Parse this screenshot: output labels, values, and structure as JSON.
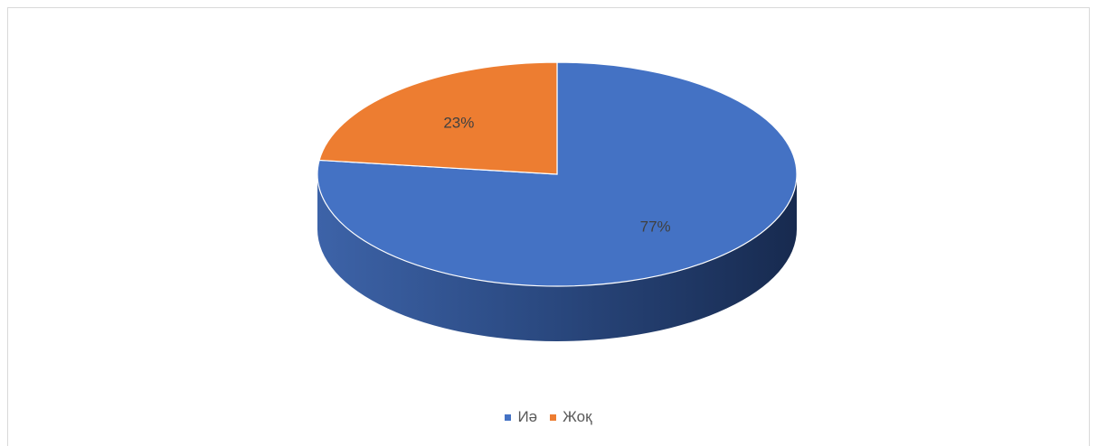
{
  "chart_data": {
    "type": "pie",
    "title": "",
    "categories": [
      "Иә",
      "Жоқ"
    ],
    "values": [
      77,
      23
    ],
    "labels": [
      "77%",
      "23%"
    ],
    "colors": [
      "#4472C4",
      "#ED7D31"
    ],
    "legend_position": "bottom",
    "style": "3d"
  }
}
